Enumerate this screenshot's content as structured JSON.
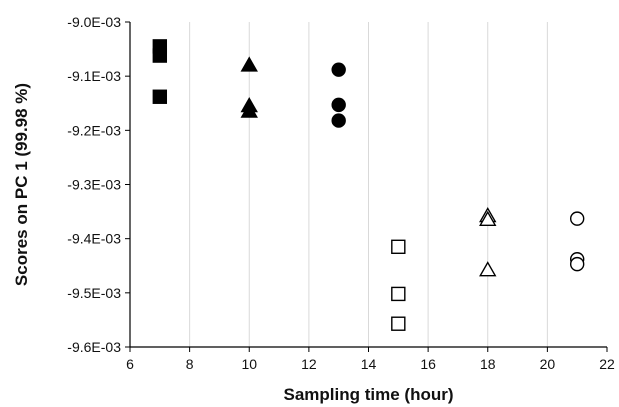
{
  "chart_data": {
    "type": "scatter",
    "xlabel": "Sampling time (hour)",
    "ylabel": "Scores on  PC 1 (99.98 %)",
    "xlim": [
      6,
      22
    ],
    "ylim": [
      -0.0096,
      -0.009
    ],
    "x_ticks": [
      6,
      8,
      10,
      12,
      14,
      16,
      18,
      20,
      22
    ],
    "x_tick_labels": [
      "6",
      "8",
      "10",
      "12",
      "14",
      "16",
      "18",
      "20",
      "22"
    ],
    "y_ticks": [
      -0.009,
      -0.0091,
      -0.0092,
      -0.0093,
      -0.0094,
      -0.0095,
      -0.0096
    ],
    "y_tick_labels": [
      "-9.0E-03",
      "-9.1E-03",
      "-9.2E-03",
      "-9.3E-03",
      "-9.4E-03",
      "-9.5E-03",
      "-9.6E-03"
    ],
    "grid": "vertical",
    "legend": "none",
    "series": [
      {
        "marker": "square",
        "filled": true,
        "points": [
          [
            7,
            -0.009045
          ],
          [
            7,
            -0.009062
          ],
          [
            7,
            -0.009138
          ]
        ]
      },
      {
        "marker": "triangle",
        "filled": true,
        "points": [
          [
            10,
            -0.00908
          ],
          [
            10,
            -0.009155
          ],
          [
            10,
            -0.009165
          ]
        ]
      },
      {
        "marker": "circle",
        "filled": true,
        "points": [
          [
            13,
            -0.009088
          ],
          [
            13,
            -0.009153
          ],
          [
            13,
            -0.009182
          ]
        ]
      },
      {
        "marker": "square",
        "filled": false,
        "points": [
          [
            15,
            -0.009415
          ],
          [
            15,
            -0.009502
          ],
          [
            15,
            -0.009557
          ]
        ]
      },
      {
        "marker": "triangle",
        "filled": false,
        "points": [
          [
            18,
            -0.009358
          ],
          [
            18,
            -0.009365
          ],
          [
            18,
            -0.009458
          ]
        ]
      },
      {
        "marker": "circle",
        "filled": false,
        "points": [
          [
            21,
            -0.009363
          ],
          [
            21,
            -0.009438
          ],
          [
            21,
            -0.009447
          ]
        ]
      }
    ],
    "colors": {
      "axis": "#000000",
      "grid": "#d9d9d9",
      "marker": "#000000"
    }
  }
}
